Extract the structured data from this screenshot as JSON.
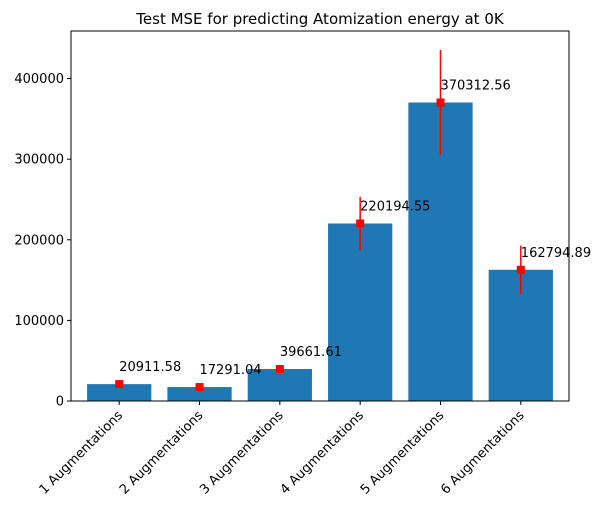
{
  "chart_data": {
    "type": "bar",
    "title": "Test MSE for predicting Atomization energy at 0K",
    "xlabel": "",
    "ylabel": "",
    "categories": [
      "1 Augmentations",
      "2 Augmentations",
      "3 Augmentations",
      "4 Augmentations",
      "5 Augmentations",
      "6 Augmentations"
    ],
    "values": [
      20911.58,
      17291.04,
      39661.61,
      220194.55,
      370312.56,
      162794.89
    ],
    "value_labels": [
      "20911.58",
      "17291.04",
      "39661.61",
      "220194.55",
      "370312.56",
      "162794.89"
    ],
    "error": [
      4000,
      3500,
      5000,
      33000,
      65000,
      30000
    ],
    "ylim": [
      0,
      459000
    ],
    "yticks": [
      0,
      100000,
      200000,
      300000,
      400000
    ],
    "ytick_labels": [
      "0",
      "100000",
      "200000",
      "300000",
      "400000"
    ],
    "grid": false,
    "colors": {
      "bar": "#1f77b4",
      "marker": "#ff0000",
      "errorbar": "#ff0000"
    }
  }
}
